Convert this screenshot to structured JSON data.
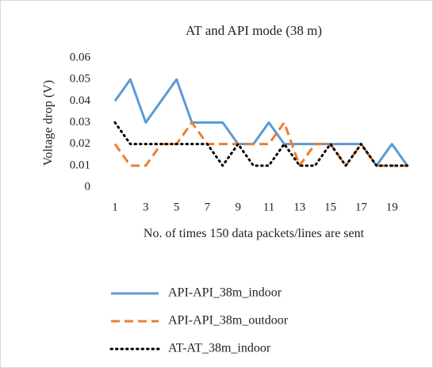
{
  "chart_data": {
    "type": "line",
    "title": "AT and API mode (38 m)",
    "x_label": "No. of times 150 data packets/lines are sent",
    "y_label": "Voltage drop (V)",
    "categories": [
      "1",
      null,
      "3",
      null,
      "5",
      null,
      "7",
      null,
      "9",
      null,
      "11",
      null,
      "13",
      null,
      "15",
      null,
      "17",
      null,
      "19",
      null
    ],
    "series": [
      {
        "name": "API-API_38m_indoor",
        "color": "#5b9bd5",
        "dash": "solid",
        "values": [
          0.04,
          0.05,
          0.03,
          0.04,
          0.05,
          0.03,
          0.03,
          0.03,
          0.02,
          0.02,
          0.03,
          0.02,
          0.02,
          0.02,
          0.02,
          0.02,
          0.02,
          0.01,
          0.02,
          0.01
        ]
      },
      {
        "name": "API-API_38m_outdoor",
        "color": "#ed7d31",
        "dash": "dashed",
        "values": [
          0.02,
          0.01,
          0.01,
          0.02,
          0.02,
          0.03,
          0.02,
          0.02,
          0.02,
          0.02,
          0.02,
          0.03,
          0.01,
          0.02,
          0.02,
          0.01,
          0.02,
          0.01,
          0.01,
          0.01
        ]
      },
      {
        "name": "AT-AT_38m_indoor",
        "color": "#000000",
        "dash": "dotted",
        "values": [
          0.03,
          0.02,
          0.02,
          0.02,
          0.02,
          0.02,
          0.02,
          0.01,
          0.02,
          0.01,
          0.01,
          0.02,
          0.01,
          0.01,
          0.02,
          0.01,
          0.02,
          0.01,
          0.01,
          0.01
        ]
      }
    ],
    "ylim": [
      0,
      0.06
    ],
    "yticks": [
      0,
      0.01,
      0.02,
      0.03,
      0.04,
      0.05,
      0.06
    ],
    "grid": false,
    "legend": "bottom"
  }
}
